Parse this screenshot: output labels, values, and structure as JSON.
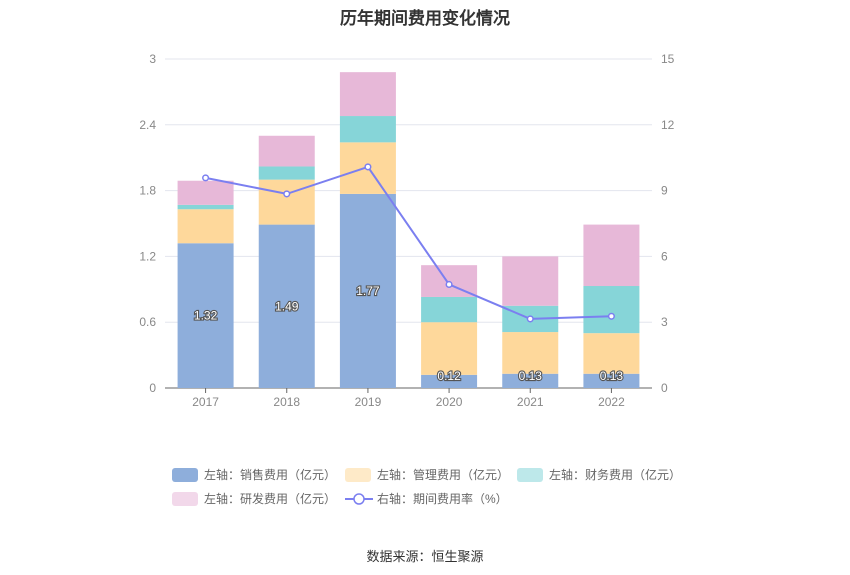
{
  "chart_data": {
    "type": "bar",
    "title": "历年期间费用变化情况",
    "categories": [
      "2017",
      "2018",
      "2019",
      "2020",
      "2021",
      "2022"
    ],
    "left_axis": {
      "ylim": [
        0,
        3
      ],
      "ticks": [
        "0",
        "0.6",
        "1.2",
        "1.8",
        "2.4",
        "3"
      ]
    },
    "right_axis": {
      "ylim": [
        0,
        15
      ],
      "ticks": [
        "0",
        "3",
        "6",
        "9",
        "12",
        "15"
      ]
    },
    "grid": true,
    "legend_placement": "bottom",
    "series": [
      {
        "name": "左轴：销售费用（亿元）",
        "kind": "bar",
        "stack": "a",
        "color": "#8eaedb",
        "values": [
          1.32,
          1.49,
          1.77,
          0.12,
          0.13,
          0.13
        ],
        "labels": [
          "1.32",
          "1.49",
          "1.77",
          "0.12",
          "0.13",
          "0.13"
        ]
      },
      {
        "name": "左轴：管理费用（亿元）",
        "kind": "bar",
        "stack": "a",
        "color": "#fed89b",
        "values": [
          0.31,
          0.41,
          0.47,
          0.48,
          0.38,
          0.37
        ]
      },
      {
        "name": "左轴：财务费用（亿元）",
        "kind": "bar",
        "stack": "a",
        "color": "#86d5d8",
        "values": [
          0.04,
          0.12,
          0.24,
          0.23,
          0.24,
          0.43
        ]
      },
      {
        "name": "左轴：研发费用（亿元）",
        "kind": "bar",
        "stack": "a",
        "color": "#e7b8d8",
        "values": [
          0.22,
          0.28,
          0.4,
          0.29,
          0.45,
          0.56
        ]
      },
      {
        "name": "右轴：期间费用率（%）",
        "kind": "line",
        "axis": "right",
        "color": "#7b7ff0",
        "values": [
          9.58,
          8.85,
          10.08,
          4.72,
          3.15,
          3.27
        ]
      }
    ]
  },
  "source": "数据来源：恒生聚源"
}
